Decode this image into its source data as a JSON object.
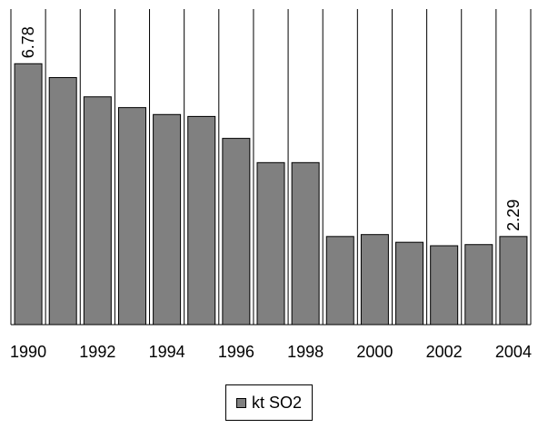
{
  "chart_data": {
    "type": "bar",
    "categories": [
      "1990",
      "1991",
      "1992",
      "1993",
      "1994",
      "1995",
      "1996",
      "1997",
      "1998",
      "1999",
      "2000",
      "2001",
      "2002",
      "2003",
      "2004"
    ],
    "tick_labels": [
      "1990",
      "1992",
      "1994",
      "1996",
      "1998",
      "2000",
      "2002",
      "2004"
    ],
    "series": [
      {
        "name": "kt SO2",
        "color": "#808080",
        "values": [
          6.78,
          6.42,
          5.92,
          5.64,
          5.46,
          5.41,
          4.84,
          4.21,
          4.21,
          2.29,
          2.34,
          2.14,
          2.05,
          2.08,
          2.29
        ]
      }
    ],
    "data_labels": [
      {
        "category": "1990",
        "text": "6.78"
      },
      {
        "category": "2004",
        "text": "2.29"
      }
    ],
    "ylim": [
      0,
      8.2
    ],
    "grid": "vertical",
    "legend": "bottom-center",
    "title": "",
    "xlabel": "",
    "ylabel": ""
  }
}
